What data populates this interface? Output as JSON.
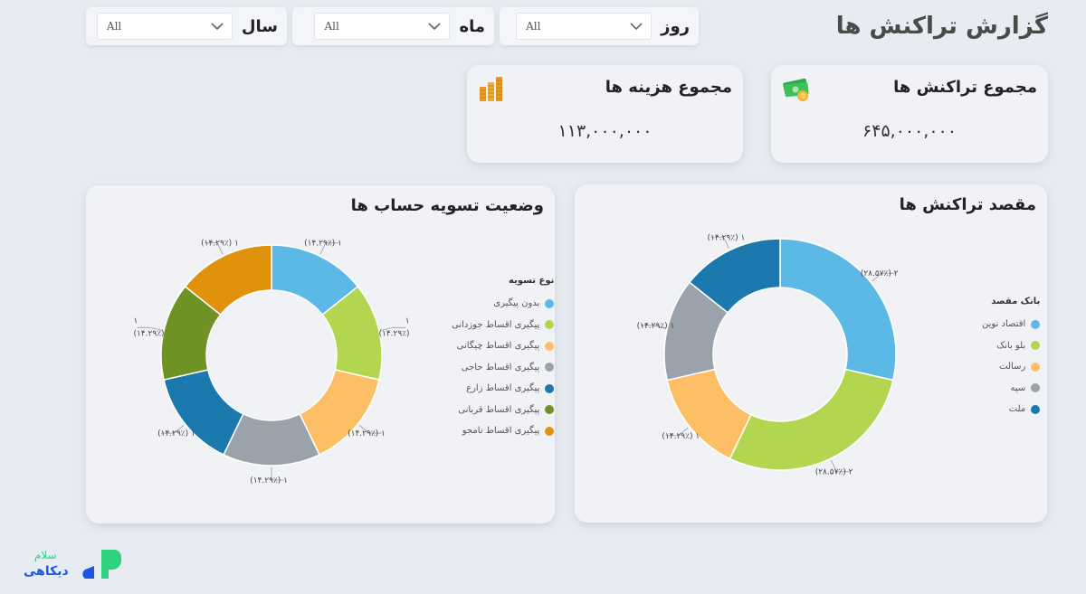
{
  "page": {
    "title": "گزارش تراکنش ها"
  },
  "filters": [
    {
      "label": "روز",
      "value": "All"
    },
    {
      "label": "ماه",
      "value": "All"
    },
    {
      "label": "سال",
      "value": "All"
    }
  ],
  "kpis": {
    "transactions": {
      "title": "مجموع تراکنش ها",
      "value": "۶۴۵,۰۰۰,۰۰۰",
      "icon": "money-icon"
    },
    "costs": {
      "title": "مجموع هزینه ها",
      "value": "۱۱۳,۰۰۰,۰۰۰",
      "icon": "coins-icon"
    }
  },
  "colors": {
    "blue_light": "#5cb8e4",
    "green_light": "#b3d651",
    "orange_light": "#fcbf65",
    "gray": "#9aa3ab",
    "blue_dark": "#1b79ad",
    "green_dark": "#6f9224",
    "orange_dark": "#e0920c"
  },
  "chart_data": [
    {
      "type": "pie",
      "title": "مقصد تراکنش ها",
      "legend_title": "بانک مقصد",
      "legend_position": "right",
      "categories": [
        "اقتصاد نوین",
        "بلو بانک",
        "رسالت",
        "سپه",
        "ملت"
      ],
      "values": [
        2,
        2,
        1,
        1,
        1
      ],
      "labels": [
        "۲ (۲۸.۵۷٪)",
        "۲ (۲۸.۵۷٪)",
        "۱ (۱۴.۲۹٪)",
        "۱ (۱۴.۲۹٪)",
        "۱ (۱۴.۲۹٪)"
      ],
      "colors": [
        "#5cb8e4",
        "#b3d651",
        "#fcbf65",
        "#9aa3ab",
        "#1b79ad"
      ]
    },
    {
      "type": "pie",
      "title": "وضعیت تسویه حساب ها",
      "legend_title": "نوع تسویه",
      "legend_position": "right",
      "categories": [
        "بدون پیگیری",
        "پیگیری اقساط جوزدانی",
        "پیگیری اقساط چیگانی",
        "پیگیری اقساط حاجی",
        "پیگیری اقساط زارع",
        "پیگیری اقساط قربانی",
        "پیگیری اقساط نامجو"
      ],
      "values": [
        1,
        1,
        1,
        1,
        1,
        1,
        1
      ],
      "labels": [
        "۱ (۱۴.۲۹٪)",
        "۱\n(۱۴.۲۹٪)",
        "۱ (۱۴.۲۹٪)",
        "۱ (۱۴.۲۹٪)",
        "۱ (۱۴.۲۹٪)",
        "۱\n(۱۴.۲۹٪)",
        "۱ (۱۴.۲۹٪)"
      ],
      "colors": [
        "#5cb8e4",
        "#b3d651",
        "#fcbf65",
        "#9aa3ab",
        "#1b79ad",
        "#6f9224",
        "#e0920c"
      ]
    }
  ],
  "brand": {
    "logo_text_top": "سلام",
    "logo_text_bottom": "دیکاهی"
  }
}
